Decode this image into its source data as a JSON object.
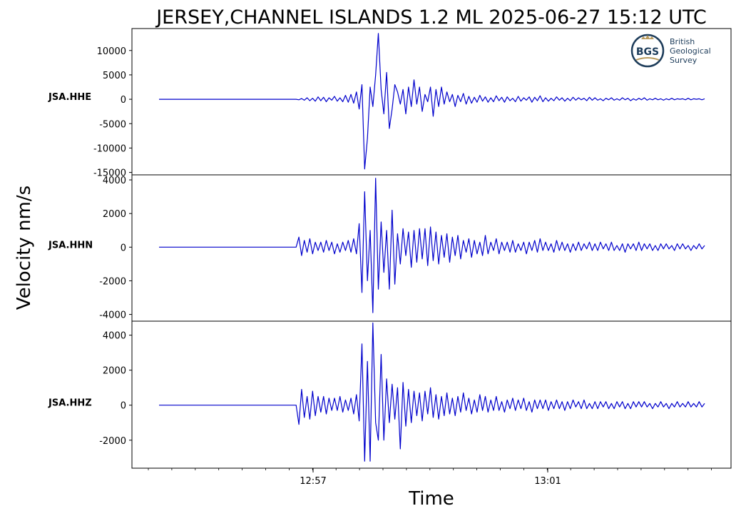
{
  "chart_data": {
    "type": "line",
    "title": "JERSEY,CHANNEL ISLANDS 1.2 ML   2025-06-27 15:12 UTC",
    "xlabel": "Time",
    "ylabel": "Velocity nm/s",
    "x_tick_labels": [
      "12:57",
      "13:01"
    ],
    "line_color": "#0000cc",
    "grid": false,
    "logo": {
      "mark": "BGS",
      "text": [
        "British",
        "Geological",
        "Survey"
      ]
    },
    "panels": [
      {
        "station": "JSA.HHE",
        "ylim": [
          -15500,
          14500
        ],
        "yticks": [
          10000,
          5000,
          0,
          -5000,
          -10000,
          -15000
        ],
        "ytick_labels": [
          "10000",
          "5000",
          "0",
          "-5000",
          "-10000",
          "-15000"
        ],
        "samples": [
          0,
          0,
          0,
          0,
          0,
          0,
          0,
          0,
          0,
          0,
          0,
          0,
          0,
          0,
          0,
          0,
          0,
          0,
          0,
          0,
          0,
          0,
          0,
          0,
          0,
          0,
          0,
          0,
          0,
          0,
          0,
          0,
          0,
          0,
          0,
          0,
          0,
          0,
          0,
          0,
          0,
          0,
          0,
          0,
          0,
          0,
          0,
          0,
          0,
          0,
          0,
          -100,
          150,
          -200,
          300,
          -300,
          200,
          -400,
          500,
          -300,
          400,
          -500,
          300,
          -200,
          600,
          -400,
          300,
          -500,
          800,
          -600,
          1000,
          -800,
          1500,
          -2000,
          3000,
          -14300,
          -8000,
          2500,
          -1500,
          5000,
          13500,
          2000,
          -3000,
          5500,
          -6000,
          -2000,
          3000,
          1500,
          -1000,
          2000,
          -3000,
          2500,
          -1500,
          4000,
          -1000,
          2500,
          -2500,
          1000,
          -500,
          2500,
          -3500,
          2000,
          -1500,
          2500,
          -1000,
          1500,
          -500,
          1000,
          -1500,
          800,
          -500,
          1200,
          -1000,
          600,
          -800,
          400,
          -600,
          800,
          -400,
          500,
          -600,
          300,
          -500,
          700,
          -300,
          400,
          -600,
          500,
          -300,
          200,
          -500,
          600,
          -400,
          300,
          -200,
          500,
          -600,
          400,
          -300,
          700,
          -500,
          300,
          -400,
          200,
          -300,
          500,
          -200,
          300,
          -400,
          200,
          -300,
          400,
          -200,
          300,
          -100,
          200,
          -300,
          400,
          -200,
          300,
          -200,
          100,
          -300,
          200,
          -100,
          300,
          -200,
          100,
          -200,
          300,
          -100,
          200,
          -300,
          100,
          -200,
          200,
          -100,
          300,
          -200,
          100,
          -100,
          200,
          -100,
          100,
          -200,
          100,
          -100,
          200,
          -100,
          100,
          0,
          100,
          -100,
          200,
          -100,
          100,
          0,
          100,
          -100,
          100
        ]
      },
      {
        "station": "JSA.HHN",
        "ylim": [
          -4400,
          4300
        ],
        "yticks": [
          4000,
          2000,
          0,
          -2000,
          -4000
        ],
        "ytick_labels": [
          "4000",
          "2000",
          "0",
          "-2000",
          "-4000"
        ],
        "samples": [
          0,
          0,
          0,
          0,
          0,
          0,
          0,
          0,
          0,
          0,
          0,
          0,
          0,
          0,
          0,
          0,
          0,
          0,
          0,
          0,
          0,
          0,
          0,
          0,
          0,
          0,
          0,
          0,
          0,
          0,
          0,
          0,
          0,
          0,
          0,
          0,
          0,
          0,
          0,
          0,
          0,
          0,
          0,
          0,
          0,
          0,
          0,
          0,
          0,
          0,
          0,
          600,
          -500,
          400,
          -300,
          500,
          -400,
          300,
          -200,
          300,
          -300,
          400,
          -200,
          300,
          -400,
          200,
          -300,
          300,
          -200,
          400,
          -300,
          500,
          -400,
          1400,
          -2700,
          3300,
          -2000,
          1000,
          -3900,
          4100,
          -2500,
          1500,
          -1500,
          1000,
          -2500,
          2200,
          -2200,
          800,
          -1000,
          1100,
          -500,
          900,
          -1200,
          1000,
          -900,
          1100,
          -700,
          1100,
          -1100,
          1200,
          -800,
          900,
          -1000,
          700,
          -600,
          800,
          -900,
          600,
          -500,
          700,
          -700,
          400,
          -300,
          500,
          -600,
          400,
          -400,
          300,
          -500,
          700,
          -400,
          300,
          -200,
          500,
          -400,
          300,
          -200,
          300,
          -300,
          400,
          -300,
          200,
          -200,
          300,
          -400,
          300,
          -200,
          400,
          -300,
          500,
          -200,
          300,
          -200,
          200,
          -300,
          400,
          -200,
          300,
          -200,
          200,
          -300,
          200,
          -200,
          300,
          -200,
          200,
          -100,
          300,
          -200,
          200,
          -200,
          300,
          -100,
          200,
          -200,
          300,
          -200,
          100,
          -200,
          200,
          -300,
          200,
          -100,
          200,
          -200,
          300,
          -200,
          200,
          -100,
          200,
          -200,
          100,
          -200,
          200,
          -100,
          200,
          -100,
          100,
          -200,
          200,
          -100,
          200,
          -100,
          100,
          -200,
          100,
          -100,
          200,
          -100,
          100
        ]
      },
      {
        "station": "JSA.HHZ",
        "ylim": [
          -3600,
          4800
        ],
        "yticks": [
          4000,
          2000,
          0,
          -2000
        ],
        "ytick_labels": [
          "4000",
          "2000",
          "0",
          "-2000"
        ],
        "samples": [
          0,
          0,
          0,
          0,
          0,
          0,
          0,
          0,
          0,
          0,
          0,
          0,
          0,
          0,
          0,
          0,
          0,
          0,
          0,
          0,
          0,
          0,
          0,
          0,
          0,
          0,
          0,
          0,
          0,
          0,
          0,
          0,
          0,
          0,
          0,
          0,
          0,
          0,
          0,
          0,
          0,
          0,
          0,
          0,
          0,
          0,
          0,
          0,
          0,
          0,
          0,
          -1100,
          900,
          -700,
          500,
          -800,
          800,
          -600,
          500,
          -400,
          500,
          -500,
          400,
          -300,
          400,
          -300,
          500,
          -400,
          300,
          -300,
          400,
          -500,
          600,
          -900,
          3500,
          -3200,
          2500,
          -3200,
          4700,
          -1000,
          -2000,
          2900,
          -2000,
          1500,
          -1000,
          1200,
          -800,
          1000,
          -2500,
          1300,
          -1200,
          900,
          -1000,
          800,
          -600,
          700,
          -900,
          800,
          -500,
          1000,
          -700,
          600,
          -800,
          500,
          -600,
          700,
          -500,
          400,
          -600,
          500,
          -400,
          700,
          -300,
          400,
          -500,
          300,
          -400,
          600,
          -300,
          500,
          -400,
          300,
          -300,
          500,
          -300,
          200,
          -400,
          300,
          -200,
          400,
          -300,
          300,
          -200,
          400,
          -300,
          200,
          -400,
          300,
          -200,
          300,
          -200,
          300,
          -300,
          200,
          -200,
          300,
          -200,
          200,
          -300,
          200,
          -200,
          300,
          -100,
          200,
          -200,
          300,
          -200,
          100,
          -200,
          200,
          -200,
          200,
          -100,
          200,
          -200,
          100,
          -200,
          200,
          -100,
          200,
          -200,
          100,
          -200,
          200,
          -100,
          200,
          -100,
          200,
          -100,
          100,
          -200,
          100,
          -100,
          200,
          -100,
          100,
          -200,
          100,
          -100,
          200,
          -100,
          100,
          -100,
          200,
          -100,
          100,
          -100,
          200,
          -100,
          100
        ]
      }
    ]
  }
}
